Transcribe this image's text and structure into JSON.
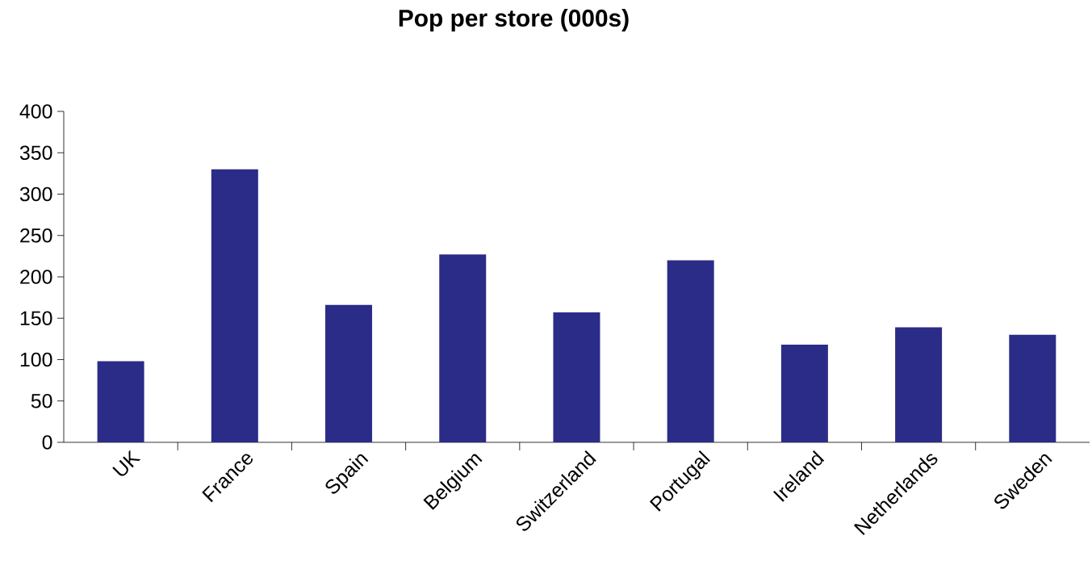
{
  "chart_data": {
    "type": "bar",
    "title": "Pop per store (000s)",
    "categories": [
      "UK",
      "France",
      "Spain",
      "Belgium",
      "Switzerland",
      "Portugal",
      "Ireland",
      "Netherlands",
      "Sweden"
    ],
    "values": [
      98,
      330,
      166,
      227,
      157,
      220,
      118,
      139,
      130
    ],
    "color": "#2b2b88",
    "ylim": [
      0,
      400
    ],
    "yticks": [
      0,
      50,
      100,
      150,
      200,
      250,
      300,
      350,
      400
    ]
  }
}
